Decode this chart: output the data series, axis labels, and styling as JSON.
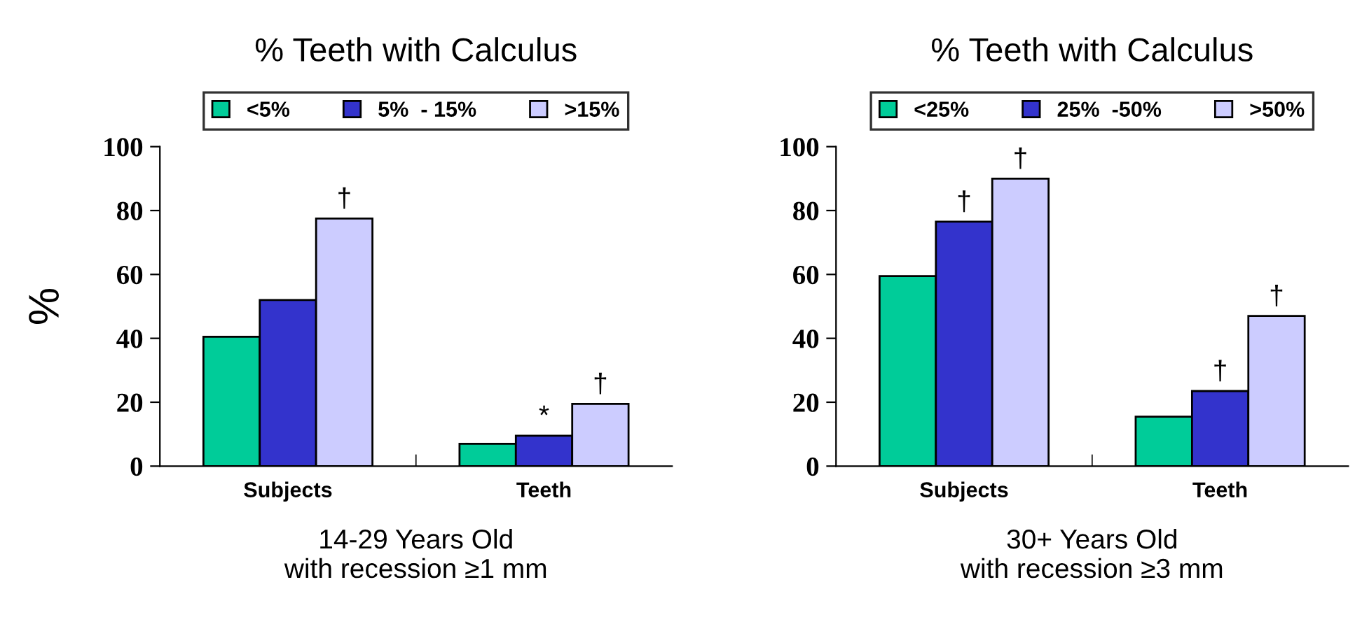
{
  "chart_data": [
    {
      "type": "bar",
      "title": "% Teeth with Calculus",
      "xlabel": "14-29 Years Old\nwith recession ≥1 mm",
      "ylabel": "%",
      "categories": [
        "Subjects",
        "Teeth"
      ],
      "series": [
        {
          "name": "<5%",
          "color": "#00cc99",
          "values": [
            40.5,
            7
          ],
          "value_labels": [
            null,
            null
          ]
        },
        {
          "name": "5%  - 15%",
          "color": "#3333cc",
          "values": [
            52,
            9.5
          ],
          "value_labels": [
            null,
            "*"
          ]
        },
        {
          "name": ">15%",
          "color": "#ccccff",
          "values": [
            77.5,
            19.5
          ],
          "value_labels": [
            "†",
            "†"
          ]
        }
      ],
      "ylim": [
        0,
        100
      ],
      "yticks": [
        0,
        20,
        40,
        60,
        80,
        100
      ],
      "legend": "top",
      "grid": false
    },
    {
      "type": "bar",
      "title": "% Teeth with Calculus",
      "xlabel": "30+ Years Old\nwith recession ≥3 mm",
      "categories": [
        "Subjects",
        "Teeth"
      ],
      "series": [
        {
          "name": "<25%",
          "color": "#00cc99",
          "values": [
            59.5,
            15.5
          ],
          "value_labels": [
            null,
            null
          ]
        },
        {
          "name": "25%  -50%",
          "color": "#3333cc",
          "values": [
            76.5,
            23.5
          ],
          "value_labels": [
            "†",
            "†"
          ]
        },
        {
          "name": ">50%",
          "color": "#ccccff",
          "values": [
            90,
            47
          ],
          "value_labels": [
            "†",
            "†"
          ]
        }
      ],
      "ylim": [
        0,
        100
      ],
      "yticks": [
        0,
        20,
        40,
        60,
        80,
        100
      ],
      "legend": "top",
      "grid": false
    }
  ]
}
